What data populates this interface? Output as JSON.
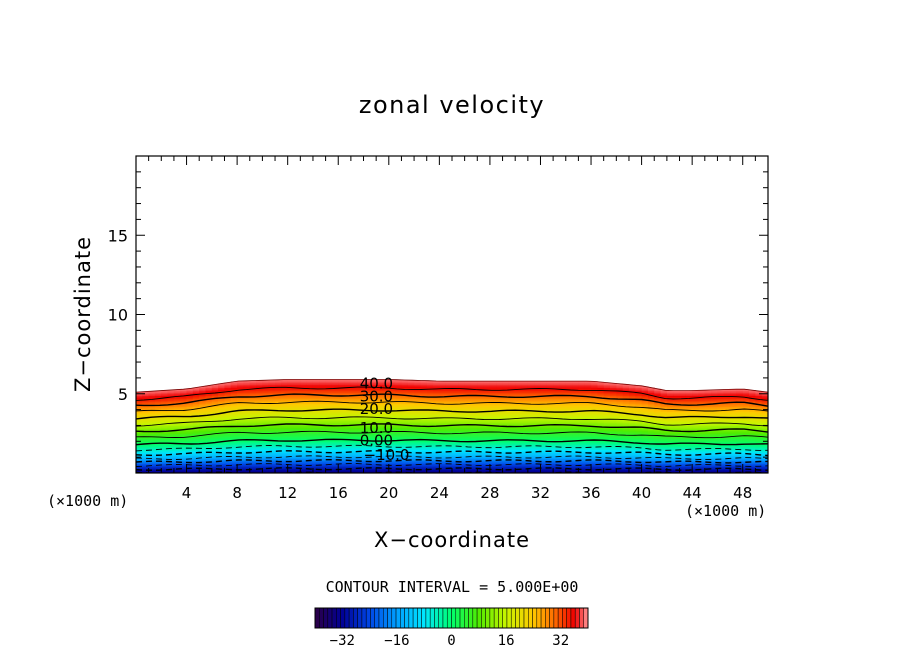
{
  "chart_data": {
    "type": "contour",
    "title": "zonal velocity",
    "xlabel": "X−coordinate",
    "ylabel": "Z−coordinate",
    "x_unit_left": "(×1000 m)",
    "x_unit_right": "(×1000 m)",
    "xlim": [
      0,
      50
    ],
    "ylim": [
      0,
      20
    ],
    "xticks": [
      4,
      8,
      12,
      16,
      20,
      24,
      28,
      32,
      36,
      40,
      44,
      48
    ],
    "yticks": [
      5,
      10,
      15
    ],
    "x_minor_step": 1,
    "y_minor_step": 1,
    "contour_interval_text": "CONTOUR INTERVAL = 5.000E+00",
    "contour_interval": 5,
    "contour_labels": [
      {
        "text": "40.0",
        "x": 17.7,
        "z": 5.7
      },
      {
        "text": "30.0",
        "x": 17.7,
        "z": 4.9
      },
      {
        "text": "20.0",
        "x": 17.7,
        "z": 4.1
      },
      {
        "text": "10.0",
        "x": 17.7,
        "z": 2.9
      },
      {
        "text": "0.00",
        "x": 17.7,
        "z": 2.1
      },
      {
        "text": "−10.0",
        "x": 18.0,
        "z": 1.2
      }
    ],
    "field": {
      "value_range": [
        -40,
        40
      ],
      "surface_top_z": [
        [
          0,
          5.1
        ],
        [
          4,
          5.3
        ],
        [
          8,
          5.8
        ],
        [
          12,
          5.9
        ],
        [
          16,
          5.9
        ],
        [
          20,
          5.9
        ],
        [
          24,
          5.8
        ],
        [
          28,
          5.8
        ],
        [
          32,
          5.8
        ],
        [
          36,
          5.8
        ],
        [
          40,
          5.5
        ],
        [
          42,
          5.2
        ],
        [
          44,
          5.2
        ],
        [
          48,
          5.3
        ],
        [
          50,
          5.1
        ]
      ],
      "vertical_profile": [
        [
          0.0,
          -35
        ],
        [
          0.5,
          -25
        ],
        [
          1.0,
          -14
        ],
        [
          1.5,
          -6
        ],
        [
          2.0,
          1
        ],
        [
          2.5,
          6
        ],
        [
          3.0,
          12
        ],
        [
          3.5,
          18
        ],
        [
          4.0,
          23
        ],
        [
          4.5,
          29
        ],
        [
          5.0,
          35
        ],
        [
          5.5,
          39
        ]
      ]
    },
    "colorbar": {
      "range": [
        -40,
        40
      ],
      "ticks": [
        -32,
        -16,
        0,
        16,
        32
      ],
      "tick_labels": [
        "−32",
        "−16",
        "0",
        "16",
        "32"
      ]
    }
  }
}
